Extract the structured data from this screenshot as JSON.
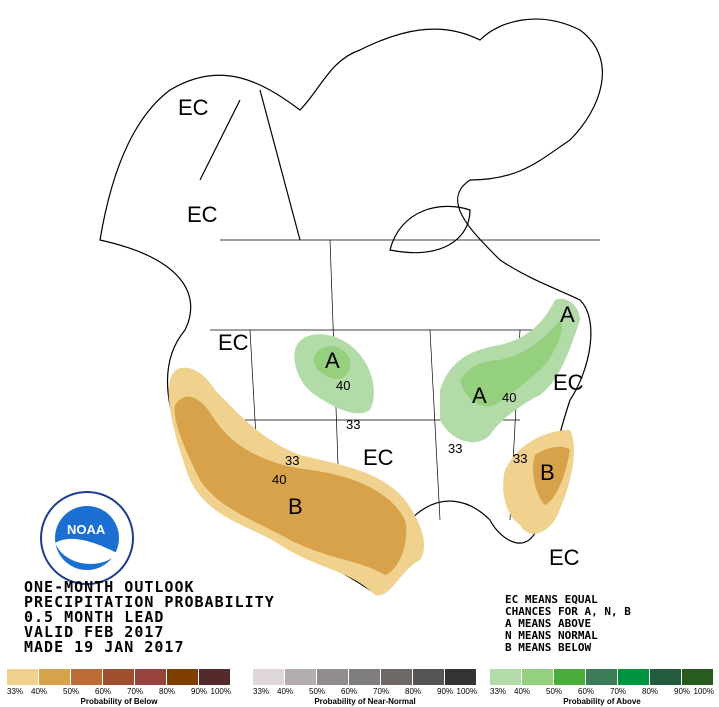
{
  "title_lines": [
    "ONE-MONTH OUTLOOK",
    "PRECIPITATION PROBABILITY",
    "0.5 MONTH LEAD",
    "VALID FEB 2017",
    "MADE 19 JAN 2017"
  ],
  "key_lines": [
    "EC MEANS EQUAL",
    "CHANCES FOR A, N, B",
    "A MEANS ABOVE",
    "N MEANS NORMAL",
    "B MEANS BELOW"
  ],
  "logo_text": "NOAA",
  "map_labels": {
    "ec_alaska": "EC",
    "ec_bc": "EC",
    "ec_nw": "EC",
    "ec_plains": "EC",
    "ec_ne": "EC",
    "ec_fl": "EC",
    "a_north_plains": "A",
    "a_great_lakes": "A",
    "a_ne": "A",
    "b_sw": "B",
    "b_se": "B",
    "c40_np": "40",
    "c33_np": "33",
    "c40_gl": "40",
    "c33_gl": "33",
    "c33_sw": "33",
    "c40_sw": "40",
    "c33_se": "33"
  },
  "legends": [
    {
      "title": "Probability of Below",
      "colors": [
        "#f0d28e",
        "#d8a24a",
        "#bf6b35",
        "#a04f2e",
        "#97433d",
        "#7f3f00",
        "#552a2a"
      ]
    },
    {
      "title": "Probability of Near-Normal",
      "colors": [
        "#e0d8d8",
        "#b3adad",
        "#908c8c",
        "#7f7d7d",
        "#6d6766",
        "#565454",
        "#343233"
      ]
    },
    {
      "title": "Probability of Above",
      "colors": [
        "#b3dba8",
        "#94d07e",
        "#4aad3a",
        "#3c7d58",
        "#009440",
        "#245a3e",
        "#285b1e"
      ]
    }
  ],
  "ticks": [
    "33%",
    "40%",
    "50%",
    "60%",
    "70%",
    "80%",
    "90%",
    "100%"
  ]
}
